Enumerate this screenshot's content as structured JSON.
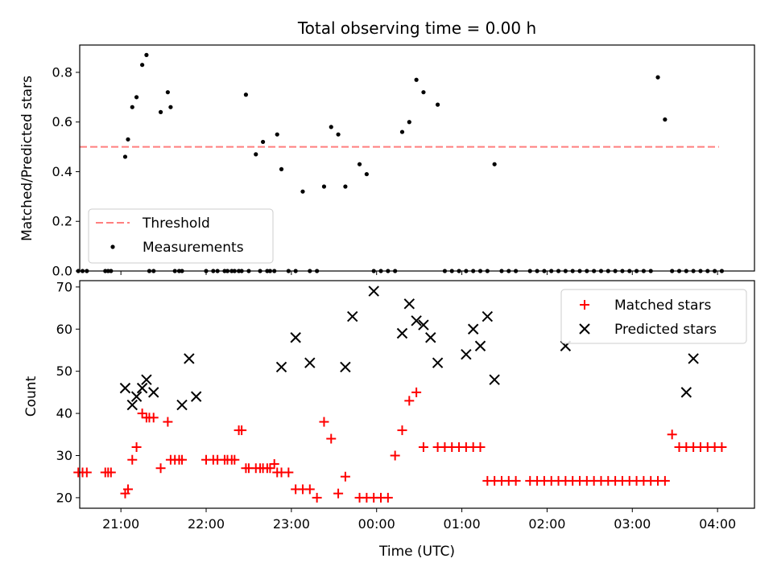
{
  "chart_data": [
    {
      "type": "scatter",
      "title": "Total observing time = 0.00 h",
      "xlabel": "",
      "ylabel": "Matched/Predicted stars",
      "xlim": [
        "20:31",
        "04:26"
      ],
      "ylim": [
        0.0,
        0.91
      ],
      "yticks": [
        "0.0",
        "0.2",
        "0.4",
        "0.6",
        "0.8"
      ],
      "legend": {
        "position": "lower-left",
        "entries": [
          "Threshold",
          "Measurements"
        ]
      },
      "threshold": {
        "name": "Threshold",
        "value": 0.5,
        "x_range": [
          "20:31",
          "04:01"
        ],
        "color": "#ff7f7f"
      },
      "series": [
        {
          "name": "Measurements",
          "color": "#000000",
          "x": [
            "20:30",
            "20:33",
            "20:36",
            "20:49",
            "20:51",
            "20:53",
            "21:03",
            "21:05",
            "21:08",
            "21:11",
            "21:15",
            "21:18",
            "21:20",
            "21:23",
            "21:28",
            "21:33",
            "21:35",
            "21:38",
            "21:41",
            "21:43",
            "22:00",
            "22:05",
            "22:08",
            "22:13",
            "22:15",
            "22:18",
            "22:20",
            "22:23",
            "22:25",
            "22:28",
            "22:30",
            "22:35",
            "22:38",
            "22:40",
            "22:43",
            "22:45",
            "22:48",
            "22:50",
            "22:53",
            "22:58",
            "23:03",
            "23:08",
            "23:13",
            "23:18",
            "23:23",
            "23:28",
            "23:33",
            "23:38",
            "23:48",
            "23:53",
            "23:58",
            "00:03",
            "00:08",
            "00:13",
            "00:18",
            "00:23",
            "00:28",
            "00:33",
            "00:43",
            "00:48",
            "00:53",
            "00:58",
            "01:03",
            "01:08",
            "01:13",
            "01:18",
            "01:23",
            "01:28",
            "01:33",
            "01:38",
            "01:48",
            "01:53",
            "01:58",
            "02:03",
            "02:08",
            "02:13",
            "02:18",
            "02:23",
            "02:28",
            "02:33",
            "02:38",
            "02:43",
            "02:48",
            "02:53",
            "02:58",
            "03:03",
            "03:08",
            "03:13",
            "03:18",
            "03:23",
            "03:28",
            "03:33",
            "03:38",
            "03:43",
            "03:48",
            "03:53",
            "03:58",
            "04:03"
          ],
          "values": [
            0,
            0,
            0,
            0,
            0,
            0,
            0.46,
            0.53,
            0.66,
            0.7,
            0.83,
            0.87,
            0,
            0,
            0.64,
            0.72,
            0.66,
            0,
            0,
            0,
            0,
            0,
            0,
            0,
            0,
            0,
            0,
            0,
            0,
            0.71,
            0,
            0.47,
            0,
            0.52,
            0,
            0,
            0,
            0.55,
            0.41,
            0,
            0,
            0.32,
            0,
            0,
            0.34,
            0.58,
            0.55,
            0.34,
            0.43,
            0.39,
            0,
            0,
            0,
            0,
            0.56,
            0.6,
            0.77,
            0.72,
            0.67,
            0,
            0,
            0,
            0,
            0,
            0,
            0,
            0.43,
            0,
            0,
            0,
            0,
            0,
            0,
            0,
            0,
            0,
            0,
            0,
            0,
            0,
            0,
            0,
            0,
            0,
            0,
            0,
            0,
            0,
            0.78,
            0.61,
            0,
            0,
            0,
            0,
            0,
            0,
            0,
            0
          ]
        }
      ]
    },
    {
      "type": "scatter",
      "title": "",
      "xlabel": "Time (UTC)",
      "ylabel": "Count",
      "xlim": [
        "20:31",
        "04:26"
      ],
      "ylim": [
        17.5,
        71.5
      ],
      "xticks": [
        "21:00",
        "22:00",
        "23:00",
        "00:00",
        "01:00",
        "02:00",
        "03:00",
        "04:00"
      ],
      "yticks": [
        "20",
        "30",
        "40",
        "50",
        "60",
        "70"
      ],
      "legend": {
        "position": "upper-right",
        "entries": [
          "Matched stars",
          "Predicted stars"
        ]
      },
      "series": [
        {
          "name": "Matched stars",
          "marker": "plus",
          "color": "#ff0000",
          "x": [
            "20:30",
            "20:33",
            "20:36",
            "20:49",
            "20:51",
            "20:53",
            "21:03",
            "21:05",
            "21:08",
            "21:11",
            "21:15",
            "21:18",
            "21:20",
            "21:23",
            "21:28",
            "21:33",
            "21:35",
            "21:38",
            "21:41",
            "21:43",
            "22:00",
            "22:05",
            "22:08",
            "22:13",
            "22:15",
            "22:18",
            "22:20",
            "22:23",
            "22:25",
            "22:28",
            "22:30",
            "22:35",
            "22:38",
            "22:40",
            "22:43",
            "22:45",
            "22:48",
            "22:50",
            "22:53",
            "22:58",
            "23:03",
            "23:08",
            "23:13",
            "23:18",
            "23:23",
            "23:28",
            "23:33",
            "23:38",
            "23:48",
            "23:53",
            "23:58",
            "00:03",
            "00:08",
            "00:13",
            "00:18",
            "00:23",
            "00:28",
            "00:33",
            "00:43",
            "00:48",
            "00:53",
            "00:58",
            "01:03",
            "01:08",
            "01:13",
            "01:18",
            "01:23",
            "01:28",
            "01:33",
            "01:38",
            "01:48",
            "01:53",
            "01:58",
            "02:03",
            "02:08",
            "02:13",
            "02:18",
            "02:23",
            "02:28",
            "02:33",
            "02:38",
            "02:43",
            "02:48",
            "02:53",
            "02:58",
            "03:03",
            "03:08",
            "03:13",
            "03:18",
            "03:23",
            "03:28",
            "03:33",
            "03:38",
            "03:43",
            "03:48",
            "03:53",
            "03:58",
            "04:03"
          ],
          "values": [
            26,
            26,
            26,
            26,
            26,
            26,
            21,
            22,
            29,
            32,
            40,
            39,
            39,
            39,
            27,
            38,
            29,
            29,
            29,
            29,
            29,
            29,
            29,
            29,
            29,
            29,
            29,
            36,
            36,
            27,
            27,
            27,
            27,
            27,
            27,
            27,
            28,
            26,
            26,
            26,
            22,
            22,
            22,
            20,
            38,
            34,
            21,
            25,
            20,
            20,
            20,
            20,
            20,
            30,
            36,
            43,
            45,
            32,
            32,
            32,
            32,
            32,
            32,
            32,
            32,
            24,
            24,
            24,
            24,
            24,
            24,
            24,
            24,
            24,
            24,
            24,
            24,
            24,
            24,
            24,
            24,
            24,
            24,
            24,
            24,
            24,
            24,
            24,
            24,
            24,
            35,
            32,
            32,
            32,
            32,
            32,
            32,
            32
          ]
        },
        {
          "name": "Predicted stars",
          "marker": "x",
          "color": "#000000",
          "x": [
            "21:03",
            "21:08",
            "21:11",
            "21:15",
            "21:18",
            "21:23",
            "21:43",
            "21:48",
            "21:53",
            "22:53",
            "23:03",
            "23:13",
            "23:38",
            "23:43",
            "23:58",
            "00:18",
            "00:23",
            "00:28",
            "00:33",
            "00:38",
            "00:43",
            "01:03",
            "01:08",
            "01:13",
            "01:18",
            "01:23",
            "02:13",
            "03:38",
            "03:43"
          ],
          "values": [
            46,
            42,
            44,
            46,
            48,
            45,
            42,
            53,
            44,
            51,
            58,
            52,
            51,
            63,
            69,
            59,
            66,
            62,
            61,
            58,
            52,
            54,
            60,
            56,
            63,
            48,
            56,
            45,
            53
          ]
        }
      ]
    }
  ]
}
